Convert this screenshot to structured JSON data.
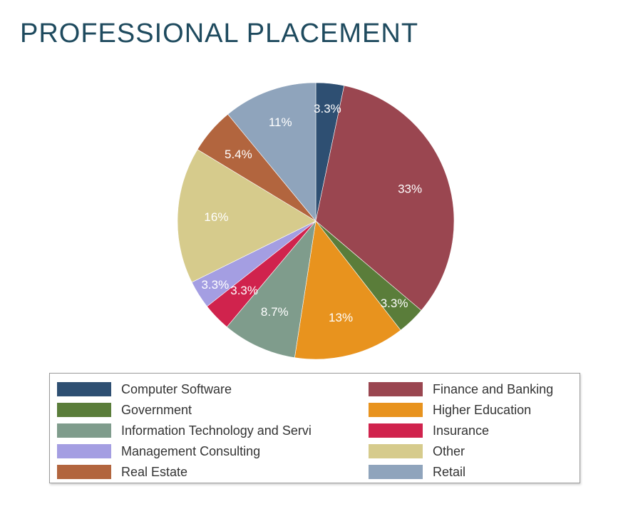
{
  "chart_data": {
    "type": "pie",
    "title": "PROFESSIONAL PLACEMENT",
    "start": "12 o'clock",
    "direction": "clockwise",
    "slices": [
      {
        "label": "Computer Software",
        "value": 3.3,
        "value_label": "3.3%",
        "color": "#2e4f72"
      },
      {
        "label": "Finance and Banking",
        "value": 33,
        "value_label": "33%",
        "color": "#9a4650"
      },
      {
        "label": "Government",
        "value": 3.3,
        "value_label": "3.3%",
        "color": "#5a7d3a"
      },
      {
        "label": "Higher Education",
        "value": 13,
        "value_label": "13%",
        "color": "#e8931e"
      },
      {
        "label": "Information Technology and Servi",
        "value": 8.7,
        "value_label": "8.7%",
        "color": "#7f9c8c"
      },
      {
        "label": "Insurance",
        "value": 3.3,
        "value_label": "3.3%",
        "color": "#d0234d"
      },
      {
        "label": "Management Consulting",
        "value": 3.3,
        "value_label": "3.3%",
        "color": "#a49ee2"
      },
      {
        "label": "Other",
        "value": 16,
        "value_label": "16%",
        "color": "#d6cb8c"
      },
      {
        "label": "Real Estate",
        "value": 5.4,
        "value_label": "5.4%",
        "color": "#b2653e"
      },
      {
        "label": "Retail",
        "value": 11,
        "value_label": "11%",
        "color": "#8fa4bc"
      }
    ],
    "legend": {
      "placement": "bottom",
      "columns": 2,
      "items": [
        "Computer Software",
        "Finance and Banking",
        "Government",
        "Higher Education",
        "Information Technology and Servi",
        "Insurance",
        "Management Consulting",
        "Other",
        "Real Estate",
        "Retail"
      ]
    }
  }
}
